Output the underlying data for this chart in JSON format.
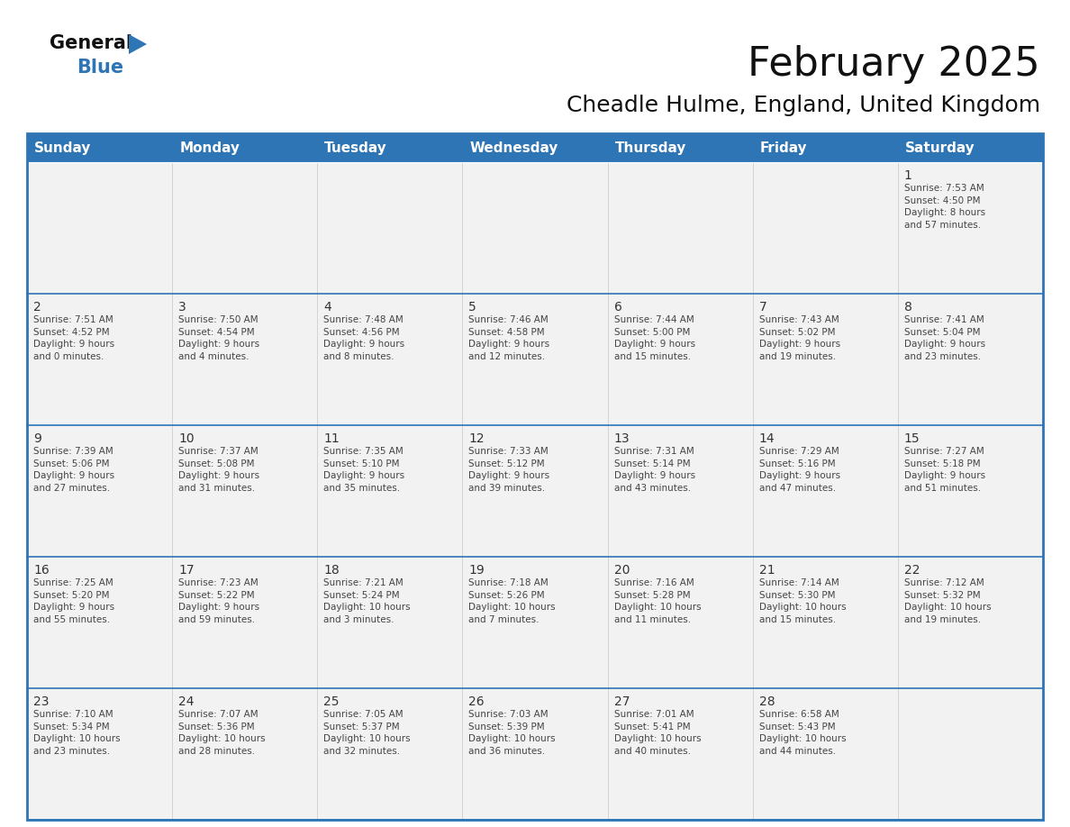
{
  "title": "February 2025",
  "subtitle": "Cheadle Hulme, England, United Kingdom",
  "header_bg": "#2E75B6",
  "header_text_color": "#FFFFFF",
  "days_of_week": [
    "Sunday",
    "Monday",
    "Tuesday",
    "Wednesday",
    "Thursday",
    "Friday",
    "Saturday"
  ],
  "weeks": [
    [
      {
        "day": null,
        "info": null
      },
      {
        "day": null,
        "info": null
      },
      {
        "day": null,
        "info": null
      },
      {
        "day": null,
        "info": null
      },
      {
        "day": null,
        "info": null
      },
      {
        "day": null,
        "info": null
      },
      {
        "day": 1,
        "info": "Sunrise: 7:53 AM\nSunset: 4:50 PM\nDaylight: 8 hours\nand 57 minutes."
      }
    ],
    [
      {
        "day": 2,
        "info": "Sunrise: 7:51 AM\nSunset: 4:52 PM\nDaylight: 9 hours\nand 0 minutes."
      },
      {
        "day": 3,
        "info": "Sunrise: 7:50 AM\nSunset: 4:54 PM\nDaylight: 9 hours\nand 4 minutes."
      },
      {
        "day": 4,
        "info": "Sunrise: 7:48 AM\nSunset: 4:56 PM\nDaylight: 9 hours\nand 8 minutes."
      },
      {
        "day": 5,
        "info": "Sunrise: 7:46 AM\nSunset: 4:58 PM\nDaylight: 9 hours\nand 12 minutes."
      },
      {
        "day": 6,
        "info": "Sunrise: 7:44 AM\nSunset: 5:00 PM\nDaylight: 9 hours\nand 15 minutes."
      },
      {
        "day": 7,
        "info": "Sunrise: 7:43 AM\nSunset: 5:02 PM\nDaylight: 9 hours\nand 19 minutes."
      },
      {
        "day": 8,
        "info": "Sunrise: 7:41 AM\nSunset: 5:04 PM\nDaylight: 9 hours\nand 23 minutes."
      }
    ],
    [
      {
        "day": 9,
        "info": "Sunrise: 7:39 AM\nSunset: 5:06 PM\nDaylight: 9 hours\nand 27 minutes."
      },
      {
        "day": 10,
        "info": "Sunrise: 7:37 AM\nSunset: 5:08 PM\nDaylight: 9 hours\nand 31 minutes."
      },
      {
        "day": 11,
        "info": "Sunrise: 7:35 AM\nSunset: 5:10 PM\nDaylight: 9 hours\nand 35 minutes."
      },
      {
        "day": 12,
        "info": "Sunrise: 7:33 AM\nSunset: 5:12 PM\nDaylight: 9 hours\nand 39 minutes."
      },
      {
        "day": 13,
        "info": "Sunrise: 7:31 AM\nSunset: 5:14 PM\nDaylight: 9 hours\nand 43 minutes."
      },
      {
        "day": 14,
        "info": "Sunrise: 7:29 AM\nSunset: 5:16 PM\nDaylight: 9 hours\nand 47 minutes."
      },
      {
        "day": 15,
        "info": "Sunrise: 7:27 AM\nSunset: 5:18 PM\nDaylight: 9 hours\nand 51 minutes."
      }
    ],
    [
      {
        "day": 16,
        "info": "Sunrise: 7:25 AM\nSunset: 5:20 PM\nDaylight: 9 hours\nand 55 minutes."
      },
      {
        "day": 17,
        "info": "Sunrise: 7:23 AM\nSunset: 5:22 PM\nDaylight: 9 hours\nand 59 minutes."
      },
      {
        "day": 18,
        "info": "Sunrise: 7:21 AM\nSunset: 5:24 PM\nDaylight: 10 hours\nand 3 minutes."
      },
      {
        "day": 19,
        "info": "Sunrise: 7:18 AM\nSunset: 5:26 PM\nDaylight: 10 hours\nand 7 minutes."
      },
      {
        "day": 20,
        "info": "Sunrise: 7:16 AM\nSunset: 5:28 PM\nDaylight: 10 hours\nand 11 minutes."
      },
      {
        "day": 21,
        "info": "Sunrise: 7:14 AM\nSunset: 5:30 PM\nDaylight: 10 hours\nand 15 minutes."
      },
      {
        "day": 22,
        "info": "Sunrise: 7:12 AM\nSunset: 5:32 PM\nDaylight: 10 hours\nand 19 minutes."
      }
    ],
    [
      {
        "day": 23,
        "info": "Sunrise: 7:10 AM\nSunset: 5:34 PM\nDaylight: 10 hours\nand 23 minutes."
      },
      {
        "day": 24,
        "info": "Sunrise: 7:07 AM\nSunset: 5:36 PM\nDaylight: 10 hours\nand 28 minutes."
      },
      {
        "day": 25,
        "info": "Sunrise: 7:05 AM\nSunset: 5:37 PM\nDaylight: 10 hours\nand 32 minutes."
      },
      {
        "day": 26,
        "info": "Sunrise: 7:03 AM\nSunset: 5:39 PM\nDaylight: 10 hours\nand 36 minutes."
      },
      {
        "day": 27,
        "info": "Sunrise: 7:01 AM\nSunset: 5:41 PM\nDaylight: 10 hours\nand 40 minutes."
      },
      {
        "day": 28,
        "info": "Sunrise: 6:58 AM\nSunset: 5:43 PM\nDaylight: 10 hours\nand 44 minutes."
      },
      {
        "day": null,
        "info": null
      }
    ]
  ],
  "cell_bg_odd": "#F2F2F2",
  "cell_bg_even": "#FFFFFF",
  "border_color": "#2E75B6",
  "day_num_color": "#333333",
  "info_text_color": "#444444",
  "logo_general_color": "#111111",
  "logo_blue_color": "#2E75B6",
  "title_fontsize": 32,
  "subtitle_fontsize": 18,
  "header_fontsize": 11,
  "day_num_fontsize": 10,
  "info_fontsize": 7.5
}
